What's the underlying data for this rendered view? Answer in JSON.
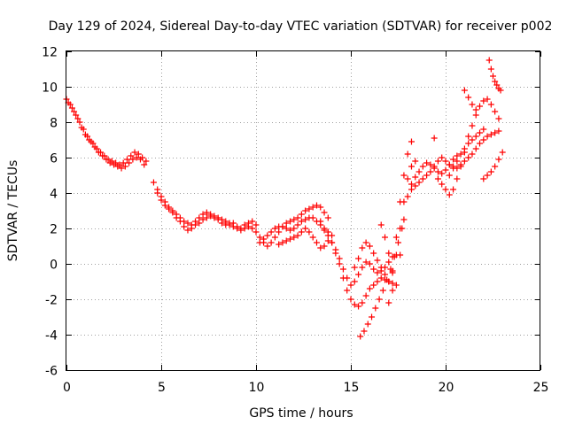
{
  "chart_data": {
    "type": "scatter",
    "title": "Day 129 of 2024, Sidereal Day-to-day VTEC variation (SDTVAR) for receiver p002",
    "xlabel": "GPS time / hours",
    "ylabel": "SDTVAR / TECUs",
    "xlim": [
      0,
      25
    ],
    "ylim": [
      -6,
      12
    ],
    "xticks": [
      "0",
      "5",
      "10",
      "15",
      "20",
      "25"
    ],
    "yticks": [
      "-6",
      "-4",
      "-2",
      "0",
      "2",
      "4",
      "6",
      "8",
      "10",
      "12"
    ],
    "grid": true,
    "marker": "plus",
    "color": "#ff0000",
    "series": [
      {
        "x": [
          0.0,
          0.2,
          0.4,
          0.6,
          0.8,
          1.0,
          1.2,
          1.4,
          1.6,
          1.8,
          2.0,
          2.2,
          2.4,
          2.6,
          2.8,
          3.0,
          3.2,
          3.4,
          3.6,
          3.8,
          4.0,
          4.2
        ],
        "y": [
          9.3,
          9.0,
          8.6,
          8.2,
          7.7,
          7.3,
          7.0,
          6.8,
          6.5,
          6.3,
          6.1,
          5.9,
          5.8,
          5.7,
          5.6,
          5.7,
          5.9,
          6.1,
          6.3,
          6.2,
          6.0,
          5.8
        ]
      },
      {
        "x": [
          0.1,
          0.3,
          0.5,
          0.7,
          0.9,
          1.1,
          1.3,
          1.5,
          1.7,
          1.9,
          2.1,
          2.3,
          2.5,
          2.7,
          2.9,
          3.1,
          3.3,
          3.5,
          3.7,
          3.9,
          4.1
        ],
        "y": [
          9.1,
          8.8,
          8.4,
          8.0,
          7.6,
          7.2,
          6.9,
          6.6,
          6.3,
          6.1,
          5.9,
          5.7,
          5.6,
          5.5,
          5.4,
          5.5,
          5.7,
          5.9,
          6.0,
          5.9,
          5.6
        ]
      },
      {
        "x": [
          4.6,
          4.8,
          5.0,
          5.2,
          5.4,
          5.6,
          5.8,
          6.0,
          6.2,
          6.4,
          6.6,
          6.8,
          7.0,
          7.2,
          7.4,
          7.6,
          7.8,
          8.0,
          8.2,
          8.4,
          8.6,
          8.8,
          9.0,
          9.2,
          9.4,
          9.6,
          9.8,
          10.0
        ],
        "y": [
          4.6,
          4.2,
          3.8,
          3.5,
          3.2,
          2.9,
          2.6,
          2.4,
          2.1,
          1.9,
          2.0,
          2.2,
          2.3,
          2.5,
          2.6,
          2.7,
          2.6,
          2.5,
          2.3,
          2.2,
          2.2,
          2.3,
          2.1,
          2.0,
          2.2,
          2.3,
          2.4,
          2.2
        ]
      },
      {
        "x": [
          4.8,
          5.0,
          5.2,
          5.4,
          5.6,
          5.8,
          6.0,
          6.2,
          6.4,
          6.6,
          6.8,
          7.0,
          7.2,
          7.4,
          7.6,
          7.8,
          8.0,
          8.2,
          8.4,
          8.6,
          8.8,
          9.0,
          9.2,
          9.4,
          9.6,
          9.8
        ],
        "y": [
          4.0,
          3.6,
          3.3,
          3.1,
          3.0,
          2.8,
          2.6,
          2.4,
          2.3,
          2.2,
          2.4,
          2.6,
          2.8,
          2.9,
          2.8,
          2.7,
          2.6,
          2.5,
          2.4,
          2.3,
          2.1,
          2.0,
          1.9,
          2.0,
          2.1,
          2.0
        ]
      },
      {
        "x": [
          10.0,
          10.2,
          10.4,
          10.6,
          10.8,
          11.0,
          11.2,
          11.4,
          11.6,
          11.8,
          12.0,
          12.2,
          12.4,
          12.6,
          12.8,
          13.0,
          13.2,
          13.4,
          13.6,
          13.8
        ],
        "y": [
          1.8,
          1.5,
          1.2,
          1.0,
          1.2,
          1.5,
          1.8,
          2.1,
          2.3,
          2.4,
          2.5,
          2.6,
          2.8,
          3.0,
          3.1,
          3.2,
          3.3,
          3.2,
          2.9,
          2.6
        ]
      },
      {
        "x": [
          10.2,
          10.4,
          10.6,
          10.8,
          11.0,
          11.2,
          11.4,
          11.6,
          11.8,
          12.0,
          12.2,
          12.4,
          12.6,
          12.8,
          13.0,
          13.2,
          13.4,
          13.6
        ],
        "y": [
          1.2,
          1.4,
          1.6,
          1.8,
          2.0,
          2.1,
          2.1,
          2.0,
          1.9,
          2.0,
          2.2,
          2.4,
          2.5,
          2.6,
          2.6,
          2.4,
          2.2,
          1.9
        ]
      },
      {
        "x": [
          11.2,
          11.4,
          11.6,
          11.8,
          12.0,
          12.2,
          12.4,
          12.6,
          12.8,
          13.0,
          13.2,
          13.4,
          13.6,
          13.8,
          14.0
        ],
        "y": [
          1.1,
          1.2,
          1.3,
          1.4,
          1.5,
          1.6,
          1.8,
          2.0,
          1.8,
          1.5,
          1.2,
          0.9,
          1.0,
          1.3,
          1.6
        ]
      },
      {
        "x": [
          13.4,
          13.6,
          13.8,
          14.0,
          14.2,
          14.4,
          14.6,
          14.8,
          15.0,
          15.2,
          15.4,
          15.6,
          15.8,
          16.0,
          16.2,
          16.4,
          16.6,
          16.8,
          17.0,
          17.2
        ],
        "y": [
          2.4,
          2.0,
          1.6,
          1.2,
          0.8,
          0.3,
          -0.3,
          -0.8,
          -1.2,
          -1.0,
          -0.6,
          -0.2,
          0.1,
          0.0,
          -0.3,
          -0.5,
          -0.4,
          -0.2,
          0.1,
          0.4
        ]
      },
      {
        "x": [
          13.8,
          14.0,
          14.2,
          14.4,
          14.6,
          14.8,
          15.0,
          15.2,
          15.4,
          15.6,
          15.8,
          16.0,
          16.2,
          16.4,
          16.6,
          16.8,
          17.0,
          17.2
        ],
        "y": [
          1.8,
          1.2,
          0.6,
          0.0,
          -0.8,
          -1.5,
          -2.0,
          -2.3,
          -2.4,
          -2.2,
          -1.8,
          -1.4,
          -1.2,
          -1.0,
          -0.8,
          -0.9,
          -1.0,
          -1.1
        ]
      },
      {
        "x": [
          15.2,
          15.4,
          15.6,
          15.8,
          16.0,
          16.2,
          16.4,
          16.6,
          16.8,
          17.0,
          17.2,
          17.4,
          17.6,
          17.8,
          18.0,
          18.2,
          18.4
        ],
        "y": [
          -0.2,
          0.3,
          0.9,
          1.2,
          1.0,
          0.6,
          0.2,
          -0.2,
          -0.6,
          -1.0,
          -1.5,
          0.5,
          2.0,
          3.5,
          4.8,
          5.5,
          5.8
        ]
      },
      {
        "x": [
          15.5,
          15.7,
          15.9,
          16.1,
          16.3,
          16.5,
          16.7,
          16.9,
          17.1,
          17.3,
          17.5,
          17.7
        ],
        "y": [
          -4.1,
          -3.8,
          -3.4,
          -3.0,
          -2.5,
          -2.0,
          -1.5,
          -0.9,
          -0.3,
          0.4,
          1.2,
          2.0
        ]
      },
      {
        "x": [
          16.6,
          16.8,
          17.0,
          17.2,
          17.4,
          17.6,
          17.8,
          18.0,
          18.2,
          18.4,
          18.6,
          18.8,
          19.0,
          19.2,
          19.4,
          19.6,
          19.8,
          20.0,
          20.2,
          20.4,
          20.6
        ],
        "y": [
          2.2,
          1.5,
          0.6,
          -0.4,
          -1.2,
          0.5,
          2.5,
          3.8,
          4.5,
          4.9,
          5.2,
          5.5,
          5.7,
          5.6,
          5.4,
          5.2,
          5.1,
          5.3,
          5.6,
          5.9,
          6.1
        ]
      },
      {
        "x": [
          17.0,
          17.2,
          17.4,
          17.6,
          17.8,
          18.0,
          18.2
        ],
        "y": [
          -2.2,
          -0.5,
          1.5,
          3.5,
          5.0,
          6.2,
          6.9
        ]
      },
      {
        "x": [
          18.2,
          18.4,
          18.6,
          18.8,
          19.0,
          19.2,
          19.4,
          19.6,
          19.8,
          20.0,
          20.2,
          20.4,
          20.6,
          20.8,
          21.0,
          21.2,
          21.4,
          21.6,
          21.8,
          22.0,
          22.2,
          22.4,
          22.6,
          22.8
        ],
        "y": [
          4.2,
          4.4,
          4.6,
          4.8,
          5.0,
          5.2,
          5.5,
          5.8,
          6.0,
          5.8,
          5.6,
          5.5,
          5.4,
          5.6,
          5.8,
          6.0,
          6.2,
          6.5,
          6.8,
          7.0,
          7.2,
          7.3,
          7.4,
          7.5
        ]
      },
      {
        "x": [
          19.6,
          19.8,
          20.0,
          20.2,
          20.4,
          20.6,
          20.8,
          21.0,
          21.2,
          21.4,
          21.6
        ],
        "y": [
          4.8,
          4.5,
          4.2,
          3.9,
          4.2,
          4.8,
          5.5,
          6.3,
          7.2,
          7.8,
          8.4
        ]
      },
      {
        "x": [
          20.2,
          20.4,
          20.6,
          20.8,
          21.0,
          21.2,
          21.4,
          21.6,
          21.8,
          22.0
        ],
        "y": [
          5.0,
          5.4,
          5.8,
          6.2,
          6.5,
          6.8,
          7.0,
          7.2,
          7.4,
          7.6
        ]
      },
      {
        "x": [
          21.0,
          21.2,
          21.4,
          21.6,
          21.8,
          22.0,
          22.2,
          22.4,
          22.6,
          22.8
        ],
        "y": [
          9.8,
          9.4,
          9.0,
          8.7,
          8.9,
          9.2,
          9.3,
          9.0,
          8.6,
          8.2
        ]
      },
      {
        "x": [
          22.3,
          22.4,
          22.5,
          22.6,
          22.7,
          22.8,
          22.9
        ],
        "y": [
          11.5,
          11.0,
          10.6,
          10.3,
          10.1,
          9.9,
          9.8
        ]
      },
      {
        "x": [
          22.0,
          22.2,
          22.4,
          22.6,
          22.8,
          23.0
        ],
        "y": [
          4.8,
          5.0,
          5.2,
          5.5,
          5.9,
          6.3
        ]
      },
      {
        "x": [
          19.4
        ],
        "y": [
          7.1
        ]
      }
    ]
  }
}
